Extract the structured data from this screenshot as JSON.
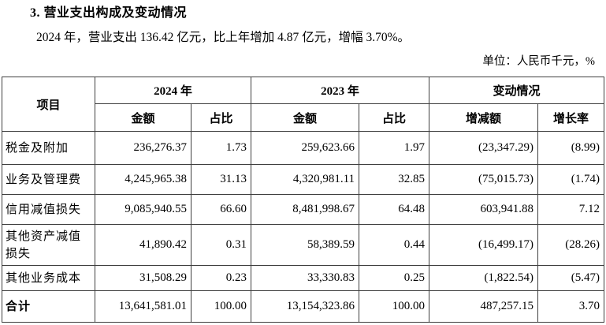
{
  "page": {
    "section_title": "3. 营业支出构成及变动情况",
    "paragraph": "2024 年，营业支出 136.42 亿元，比上年增加 4.87 亿元，增幅 3.70%。",
    "unit_note": "单位：人民币千元，%"
  },
  "table": {
    "header": {
      "item": "项目",
      "group_2024": "2024 年",
      "group_2023": "2023 年",
      "group_change": "变动情况",
      "amount": "金额",
      "ratio": "占比",
      "change_amount": "增减额",
      "growth_rate": "增长率"
    },
    "rows": [
      {
        "item": "税金及附加",
        "amount_2024": "236,276.37",
        "ratio_2024": "1.73",
        "amount_2023": "259,623.66",
        "ratio_2023": "1.97",
        "change_amount": "(23,347.29)",
        "growth_rate": "(8.99)",
        "total": false
      },
      {
        "item": "业务及管理费",
        "amount_2024": "4,245,965.38",
        "ratio_2024": "31.13",
        "amount_2023": "4,320,981.11",
        "ratio_2023": "32.85",
        "change_amount": "(75,015.73)",
        "growth_rate": "(1.74)",
        "total": false
      },
      {
        "item": "信用减值损失",
        "amount_2024": "9,085,940.55",
        "ratio_2024": "66.60",
        "amount_2023": "8,481,998.67",
        "ratio_2023": "64.48",
        "change_amount": "603,941.88",
        "growth_rate": "7.12",
        "total": false
      },
      {
        "item": "其他资产减值损失",
        "amount_2024": "41,890.42",
        "ratio_2024": "0.31",
        "amount_2023": "58,389.59",
        "ratio_2023": "0.44",
        "change_amount": "(16,499.17)",
        "growth_rate": "(28.26)",
        "total": false
      },
      {
        "item": "其他业务成本",
        "amount_2024": "31,508.29",
        "ratio_2024": "0.23",
        "amount_2023": "33,330.83",
        "ratio_2023": "0.25",
        "change_amount": "(1,822.54)",
        "growth_rate": "(5.47)",
        "total": false
      },
      {
        "item": "合计",
        "amount_2024": "13,641,581.01",
        "ratio_2024": "100.00",
        "amount_2023": "13,154,323.86",
        "ratio_2023": "100.00",
        "change_amount": "487,257.15",
        "growth_rate": "3.70",
        "total": true
      }
    ]
  }
}
